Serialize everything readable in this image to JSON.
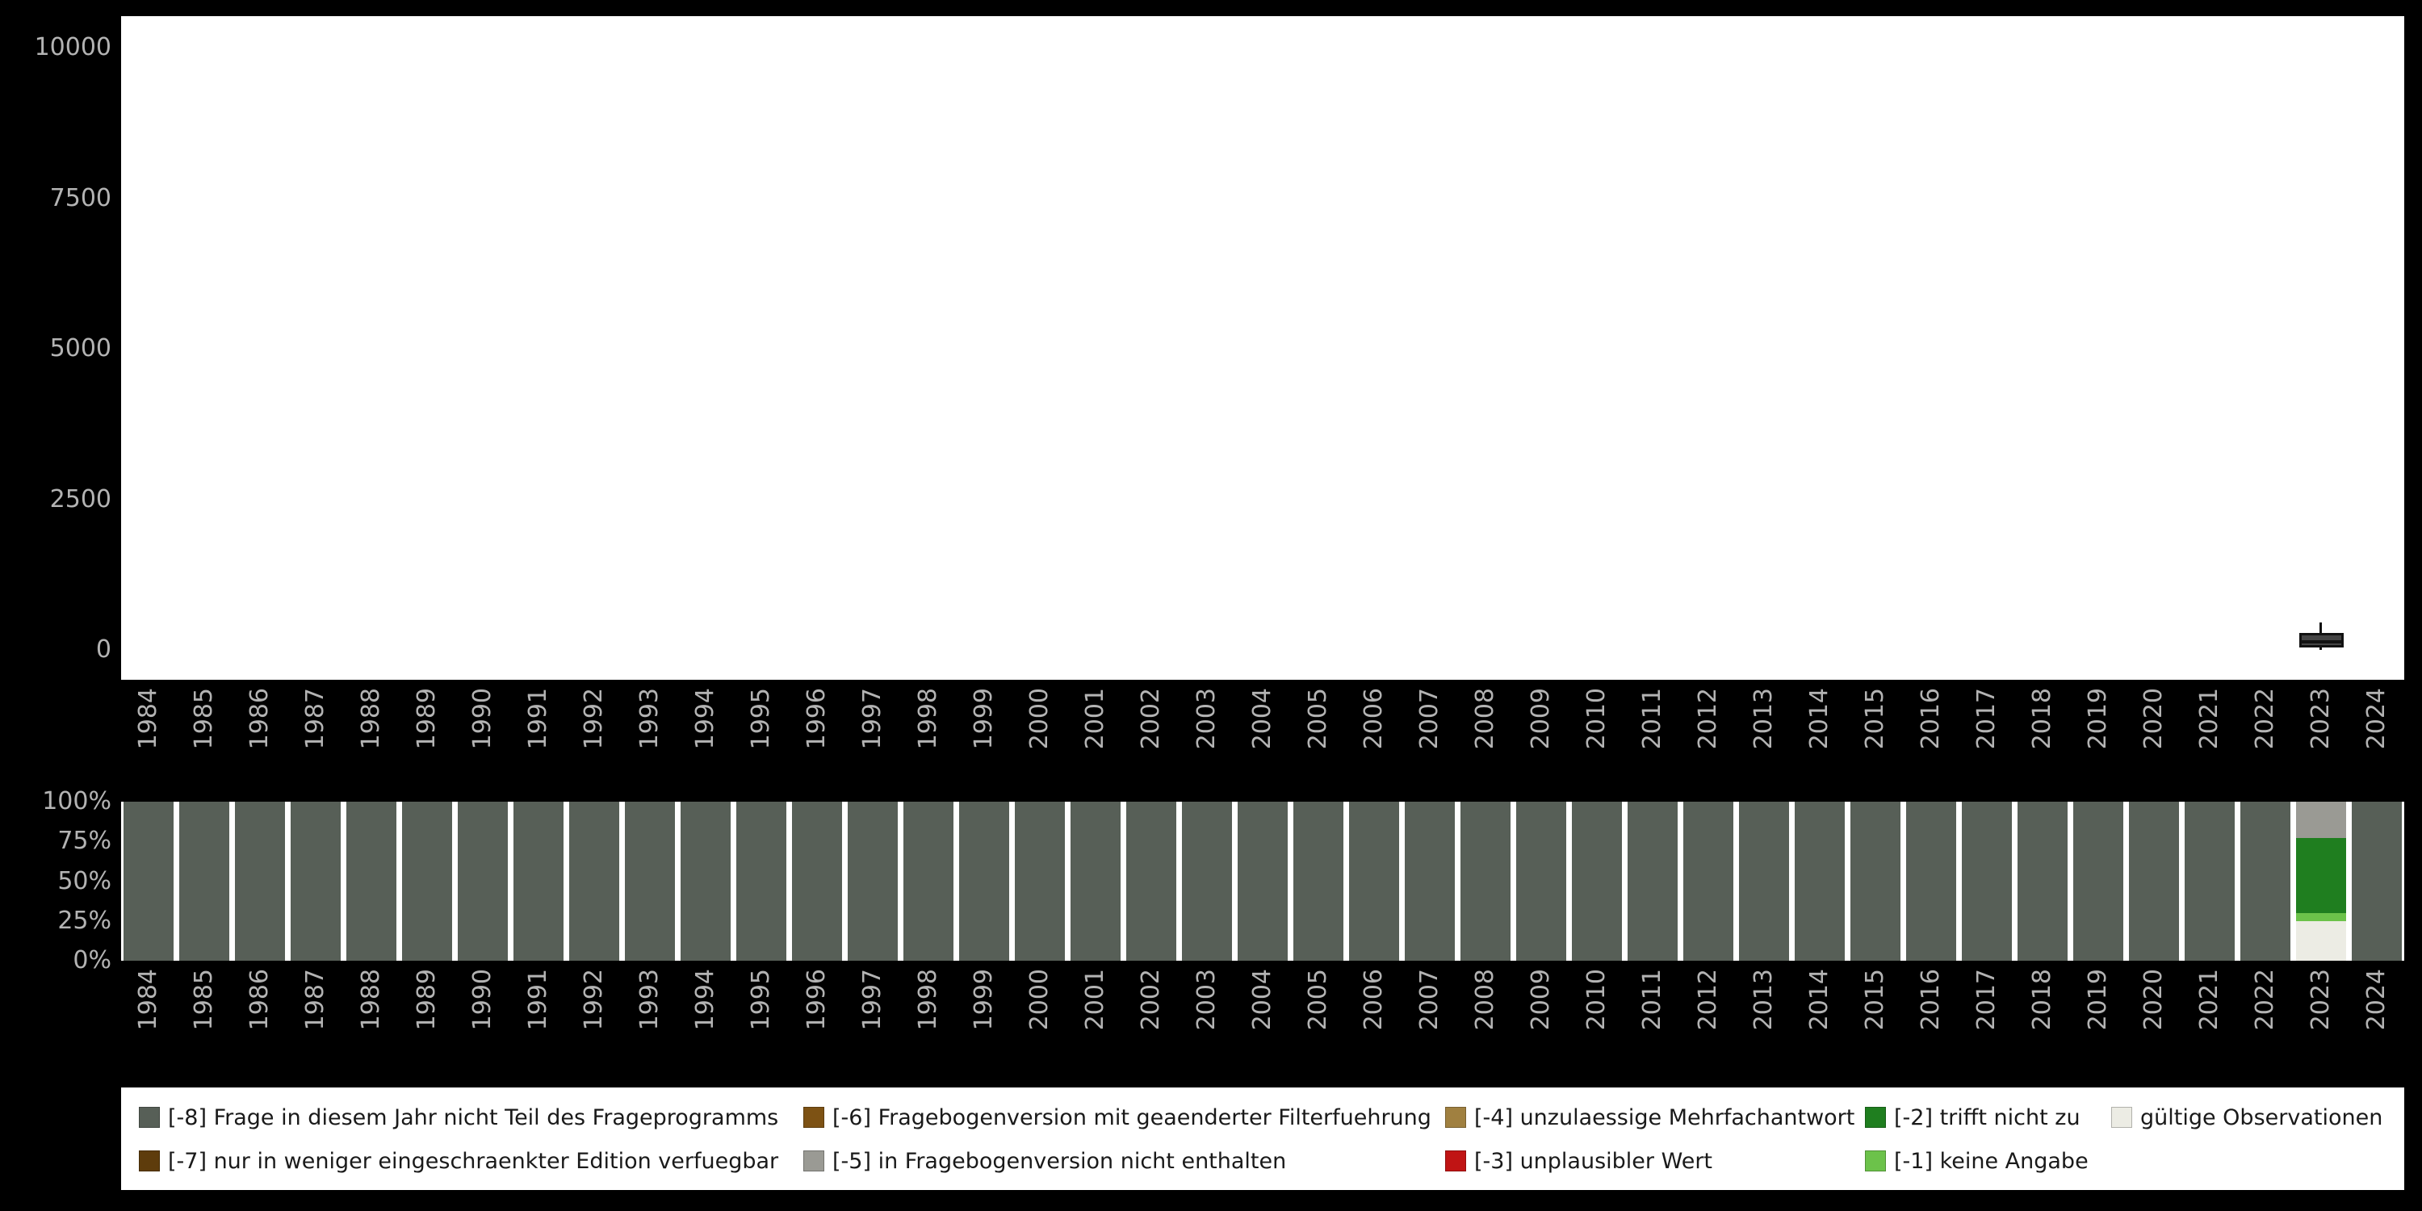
{
  "app": {
    "name": "variable-statistics-chart",
    "background": "#000000"
  },
  "axis": {
    "text_color": "#b3b3b3"
  },
  "colors": {
    "[-8]": "#575f57",
    "[-7]": "#5e3c0c",
    "[-6]": "#7d5214",
    "[-5]": "#9a9a94",
    "[-4]": "#a08040",
    "[-3]": "#c01414",
    "[-2]": "#1f7e1f",
    "[-1]": "#6cc24a",
    "valid": "#ecece4",
    "box_fill": "#444444",
    "box_stroke": "#111111"
  },
  "chart_data": [
    {
      "id": "observations-per-year",
      "type": "boxplot",
      "title": "",
      "xlabel": "",
      "ylabel": "",
      "ylim": [
        0,
        10500
      ],
      "grid": false,
      "x_categories": [
        "1984",
        "1985",
        "1986",
        "1987",
        "1988",
        "1989",
        "1990",
        "1991",
        "1992",
        "1993",
        "1994",
        "1995",
        "1996",
        "1997",
        "1998",
        "1999",
        "2000",
        "2001",
        "2002",
        "2003",
        "2004",
        "2005",
        "2006",
        "2007",
        "2008",
        "2009",
        "2010",
        "2011",
        "2012",
        "2013",
        "2014",
        "2015",
        "2016",
        "2017",
        "2018",
        "2019",
        "2020",
        "2021",
        "2022",
        "2023",
        "2024"
      ],
      "yticks": [
        {
          "value": 0,
          "label": "0"
        },
        {
          "value": 2500,
          "label": "2500"
        },
        {
          "value": 5000,
          "label": "5000"
        },
        {
          "value": 7500,
          "label": "7500"
        },
        {
          "value": 10000,
          "label": "10000"
        }
      ],
      "boxes": [
        {
          "x": "2023",
          "whisker_low": 0,
          "q1": 40,
          "median": 130,
          "q3": 280,
          "whisker_high": 450
        }
      ]
    },
    {
      "id": "missing-codes-percent",
      "type": "bar",
      "stacked": true,
      "unit": "percent",
      "categories": [
        "1984",
        "1985",
        "1986",
        "1987",
        "1988",
        "1989",
        "1990",
        "1991",
        "1992",
        "1993",
        "1994",
        "1995",
        "1996",
        "1997",
        "1998",
        "1999",
        "2000",
        "2001",
        "2002",
        "2003",
        "2004",
        "2005",
        "2006",
        "2007",
        "2008",
        "2009",
        "2010",
        "2011",
        "2012",
        "2013",
        "2014",
        "2015",
        "2016",
        "2017",
        "2018",
        "2019",
        "2020",
        "2021",
        "2022",
        "2023",
        "2024"
      ],
      "yticks": [
        {
          "value": 0,
          "label": "0%"
        },
        {
          "value": 25,
          "label": "25%"
        },
        {
          "value": 50,
          "label": "50%"
        },
        {
          "value": 75,
          "label": "75%"
        },
        {
          "value": 100,
          "label": "100%"
        }
      ],
      "default_stack": [
        {
          "key": "[-8]",
          "pct": 100
        }
      ],
      "stacks_by_year": {
        "2023": [
          {
            "key": "valid",
            "pct": 25
          },
          {
            "key": "[-1]",
            "pct": 5
          },
          {
            "key": "[-2]",
            "pct": 47
          },
          {
            "key": "[-5]",
            "pct": 23
          }
        ]
      }
    }
  ],
  "legend": {
    "background": "#ffffff",
    "rows": [
      [
        {
          "key": "[-8]",
          "label": "[-8] Frage in diesem Jahr nicht Teil des Frageprogramms"
        },
        {
          "key": "[-6]",
          "label": "[-6] Fragebogenversion mit geaenderter Filterfuehrung"
        },
        {
          "key": "[-4]",
          "label": "[-4] unzulaessige Mehrfachantwort"
        },
        {
          "key": "[-2]",
          "label": "[-2] trifft nicht zu"
        },
        {
          "key": "valid",
          "label": "gültige Observationen"
        }
      ],
      [
        {
          "key": "[-7]",
          "label": "[-7] nur in weniger eingeschraenkter Edition verfuegbar"
        },
        {
          "key": "[-5]",
          "label": "[-5] in Fragebogenversion nicht enthalten"
        },
        {
          "key": "[-3]",
          "label": "[-3] unplausibler Wert"
        },
        {
          "key": "[-1]",
          "label": "[-1] keine Angabe"
        }
      ]
    ]
  }
}
